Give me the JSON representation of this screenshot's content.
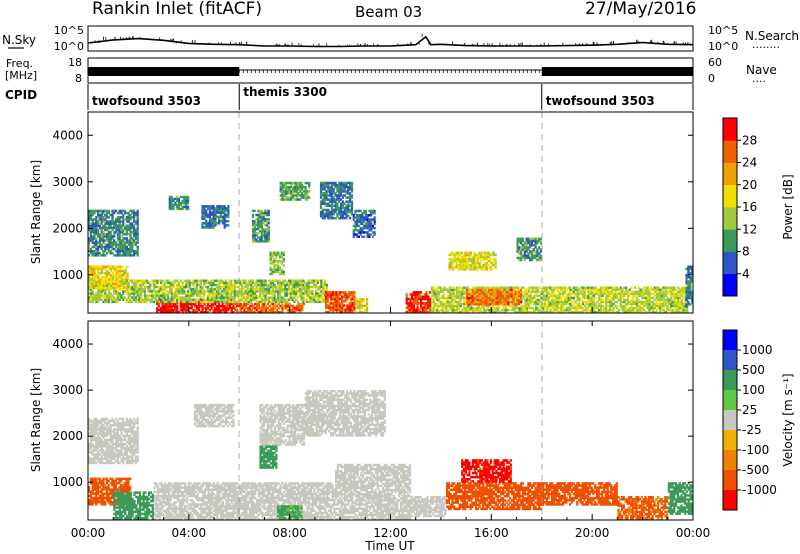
{
  "header": {
    "title": "Rankin Inlet (fitACF)",
    "beam": "Beam 03",
    "date": "27/May/2016"
  },
  "noise_panel": {
    "left_label": "N.Sky",
    "right_label": "N.Search",
    "right_marker": "........",
    "left_ticks": [
      "10^5",
      "10^0"
    ],
    "right_ticks": [
      "10^5",
      "10^0"
    ]
  },
  "freq_panel": {
    "left_label_line1": "Freq.",
    "left_label_line2": "[MHz]",
    "right_label": "Nave",
    "right_marker": "....",
    "left_ticks": [
      "18",
      "8"
    ],
    "right_ticks": [
      "60",
      "0"
    ]
  },
  "cpid_panel": {
    "label": "CPID",
    "segments": [
      {
        "name": "twofsound 3503",
        "start_hour": 0,
        "end_hour": 6
      },
      {
        "name": "themis 3300",
        "start_hour": 6,
        "end_hour": 18
      },
      {
        "name": "twofsound 3503",
        "start_hour": 18,
        "end_hour": 24
      }
    ]
  },
  "colors": {
    "power_scale": [
      "#0000ff",
      "#2f55c8",
      "#3c9a5a",
      "#a0c840",
      "#f0e000",
      "#f0a000",
      "#f06000",
      "#ff0000"
    ],
    "velocity_scale": [
      "#ff0000",
      "#f05000",
      "#f08000",
      "#f0b000",
      "#c8c8c0",
      "#60c840",
      "#3c9a5a",
      "#2f55c8",
      "#0000ff"
    ]
  },
  "chart_data": [
    {
      "type": "heatmap",
      "name": "power",
      "ylabel": "Slant Range [km]",
      "ylim": [
        180,
        4500
      ],
      "yticks": [
        "1000",
        "2000",
        "3000",
        "4000"
      ],
      "colorbar_label": "Power [dB]",
      "colorbar_ticks": [
        "4",
        "8",
        "12",
        "16",
        "20",
        "24",
        "28"
      ],
      "clim": [
        0,
        32
      ],
      "regions": [
        {
          "t0": 2.7,
          "t1": 5.8,
          "r0": 180,
          "r1": 480,
          "v": 30
        },
        {
          "t0": 5.8,
          "t1": 8.6,
          "r0": 180,
          "r1": 400,
          "v": 26
        },
        {
          "t0": 0.0,
          "t1": 9.5,
          "r0": 400,
          "r1": 900,
          "v": 14
        },
        {
          "t0": 9.4,
          "t1": 10.6,
          "r0": 180,
          "r1": 650,
          "v": 27
        },
        {
          "t0": 10.6,
          "t1": 11.1,
          "r0": 180,
          "r1": 500,
          "v": 18
        },
        {
          "t0": 12.6,
          "t1": 13.6,
          "r0": 180,
          "r1": 650,
          "v": 29
        },
        {
          "t0": 13.6,
          "t1": 23.8,
          "r0": 180,
          "r1": 750,
          "v": 15
        },
        {
          "t0": 15.0,
          "t1": 17.2,
          "r0": 350,
          "r1": 700,
          "v": 25
        },
        {
          "t0": 14.3,
          "t1": 16.2,
          "r0": 1100,
          "r1": 1500,
          "v": 17
        },
        {
          "t0": 17.0,
          "t1": 18.0,
          "r0": 1300,
          "r1": 1800,
          "v": 10
        },
        {
          "t0": 0.0,
          "t1": 2.0,
          "r0": 1400,
          "r1": 2400,
          "v": 9
        },
        {
          "t0": 3.2,
          "t1": 4.0,
          "r0": 2400,
          "r1": 2700,
          "v": 9
        },
        {
          "t0": 4.5,
          "t1": 5.6,
          "r0": 2000,
          "r1": 2500,
          "v": 8
        },
        {
          "t0": 6.5,
          "t1": 7.2,
          "r0": 1700,
          "r1": 2400,
          "v": 10
        },
        {
          "t0": 7.6,
          "t1": 8.8,
          "r0": 2600,
          "r1": 3000,
          "v": 11
        },
        {
          "t0": 9.2,
          "t1": 10.5,
          "r0": 2200,
          "r1": 3000,
          "v": 8
        },
        {
          "t0": 10.5,
          "t1": 11.4,
          "r0": 1800,
          "r1": 2400,
          "v": 7
        },
        {
          "t0": 7.2,
          "t1": 7.8,
          "r0": 1000,
          "r1": 1500,
          "v": 13
        },
        {
          "t0": 0.0,
          "t1": 1.6,
          "r0": 700,
          "r1": 1200,
          "v": 18
        },
        {
          "t0": 23.7,
          "t1": 24.0,
          "r0": 300,
          "r1": 1200,
          "v": 8
        }
      ]
    },
    {
      "type": "heatmap",
      "name": "velocity",
      "ylabel": "Slant Range [km]",
      "xlabel": "Time UT",
      "ylim": [
        180,
        4500
      ],
      "yticks": [
        "1000",
        "2000",
        "3000",
        "4000"
      ],
      "xlim": [
        0,
        24
      ],
      "xticks": [
        "00:00",
        "04:00",
        "08:00",
        "12:00",
        "16:00",
        "20:00",
        "00:00"
      ],
      "colorbar_label": "Velocity [m s⁻¹]",
      "colorbar_ticks": [
        "1000",
        "500",
        "100",
        "25",
        "-25",
        "-100",
        "-500",
        "-1000"
      ],
      "regions": [
        {
          "t0": 0.0,
          "t1": 2.0,
          "r0": 1400,
          "r1": 2400,
          "v": 0
        },
        {
          "t0": 4.2,
          "t1": 5.8,
          "r0": 2200,
          "r1": 2700,
          "v": 0
        },
        {
          "t0": 6.8,
          "t1": 8.6,
          "r0": 1800,
          "r1": 2700,
          "v": 0
        },
        {
          "t0": 8.6,
          "t1": 11.8,
          "r0": 2000,
          "r1": 3000,
          "v": 0
        },
        {
          "t0": 2.6,
          "t1": 9.8,
          "r0": 180,
          "r1": 1000,
          "v": 0
        },
        {
          "t0": 0.0,
          "t1": 1.7,
          "r0": 500,
          "r1": 1100,
          "v": -150
        },
        {
          "t0": 1.0,
          "t1": 2.6,
          "r0": 200,
          "r1": 800,
          "v": 200
        },
        {
          "t0": 7.5,
          "t1": 8.5,
          "r0": 200,
          "r1": 500,
          "v": 120
        },
        {
          "t0": 6.8,
          "t1": 7.5,
          "r0": 1300,
          "r1": 1800,
          "v": 300
        },
        {
          "t0": 9.8,
          "t1": 12.8,
          "r0": 180,
          "r1": 1400,
          "v": 0
        },
        {
          "t0": 12.8,
          "t1": 14.2,
          "r0": 250,
          "r1": 700,
          "v": 0
        },
        {
          "t0": 14.2,
          "t1": 18.0,
          "r0": 400,
          "r1": 1000,
          "v": -350
        },
        {
          "t0": 14.8,
          "t1": 16.8,
          "r0": 1000,
          "r1": 1500,
          "v": -700
        },
        {
          "t0": 17.8,
          "t1": 21.0,
          "r0": 500,
          "r1": 1000,
          "v": -250
        },
        {
          "t0": 21.0,
          "t1": 23.0,
          "r0": 200,
          "r1": 700,
          "v": -120
        },
        {
          "t0": 23.0,
          "t1": 24.0,
          "r0": 300,
          "r1": 1000,
          "v": 250
        }
      ]
    }
  ],
  "noise_data": {
    "n_sky": [
      {
        "t": 0.0,
        "v": 1.6
      },
      {
        "t": 1.0,
        "v": 2.3
      },
      {
        "t": 2.0,
        "v": 2.6
      },
      {
        "t": 3.0,
        "v": 2.2
      },
      {
        "t": 4.0,
        "v": 1.5
      },
      {
        "t": 5.0,
        "v": 1.3
      },
      {
        "t": 6.0,
        "v": 1.2
      },
      {
        "t": 7.0,
        "v": 0.9
      },
      {
        "t": 8.0,
        "v": 0.9
      },
      {
        "t": 9.0,
        "v": 0.8
      },
      {
        "t": 10.0,
        "v": 0.8
      },
      {
        "t": 11.0,
        "v": 0.9
      },
      {
        "t": 12.0,
        "v": 0.9
      },
      {
        "t": 13.0,
        "v": 1.2
      },
      {
        "t": 13.4,
        "v": 3.0
      },
      {
        "t": 13.6,
        "v": 1.2
      },
      {
        "t": 14.0,
        "v": 1.3
      },
      {
        "t": 15.0,
        "v": 1.0
      },
      {
        "t": 16.0,
        "v": 0.9
      },
      {
        "t": 17.0,
        "v": 0.9
      },
      {
        "t": 18.0,
        "v": 0.9
      },
      {
        "t": 19.0,
        "v": 1.0
      },
      {
        "t": 20.0,
        "v": 1.1
      },
      {
        "t": 21.0,
        "v": 1.3
      },
      {
        "t": 22.0,
        "v": 1.7
      },
      {
        "t": 23.0,
        "v": 1.3
      },
      {
        "t": 24.0,
        "v": 1.2
      }
    ],
    "n_sky_range": [
      0,
      5
    ],
    "n_search_visible": false
  },
  "freq_data": {
    "segments": [
      {
        "t0": 0.0,
        "t1": 6.0,
        "style": "dense"
      },
      {
        "t0": 6.0,
        "t1": 18.0,
        "style": "sparse"
      },
      {
        "t0": 18.0,
        "t1": 24.0,
        "style": "dense"
      }
    ]
  }
}
